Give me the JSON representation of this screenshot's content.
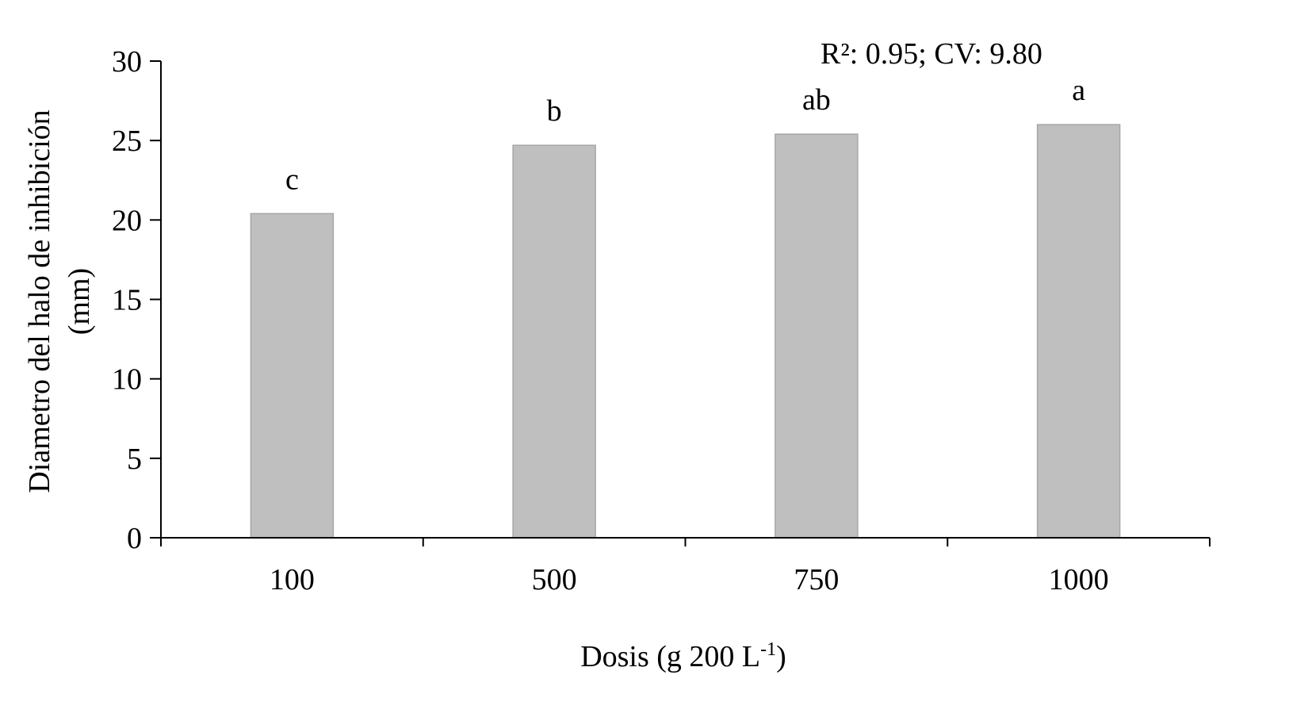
{
  "chart_data": {
    "type": "bar",
    "categories": [
      "100",
      "500",
      "750",
      "1000"
    ],
    "values": [
      20.4,
      24.7,
      25.4,
      26.0
    ],
    "significance_labels": [
      "c",
      "b",
      "ab",
      "a"
    ],
    "annotation": "R²: 0.95; CV: 9.80",
    "xlabel": {
      "main": "Dosis (g 200 L",
      "superscript": "-1",
      "close": ")"
    },
    "ylabel": {
      "line1": "Diametro del halo de inhibición",
      "line2": "(mm)"
    },
    "ylim": [
      0,
      30
    ],
    "yticks": [
      0,
      5,
      10,
      15,
      20,
      25,
      30
    ],
    "ytick_labels": [
      "0",
      "5",
      "10",
      "15",
      "20",
      "25",
      "30"
    ],
    "grid": false,
    "legend": "none",
    "colors": {
      "bar_fill": "#bfbfbf",
      "bar_stroke": "#a6a6a6",
      "axis": "#000000"
    }
  }
}
